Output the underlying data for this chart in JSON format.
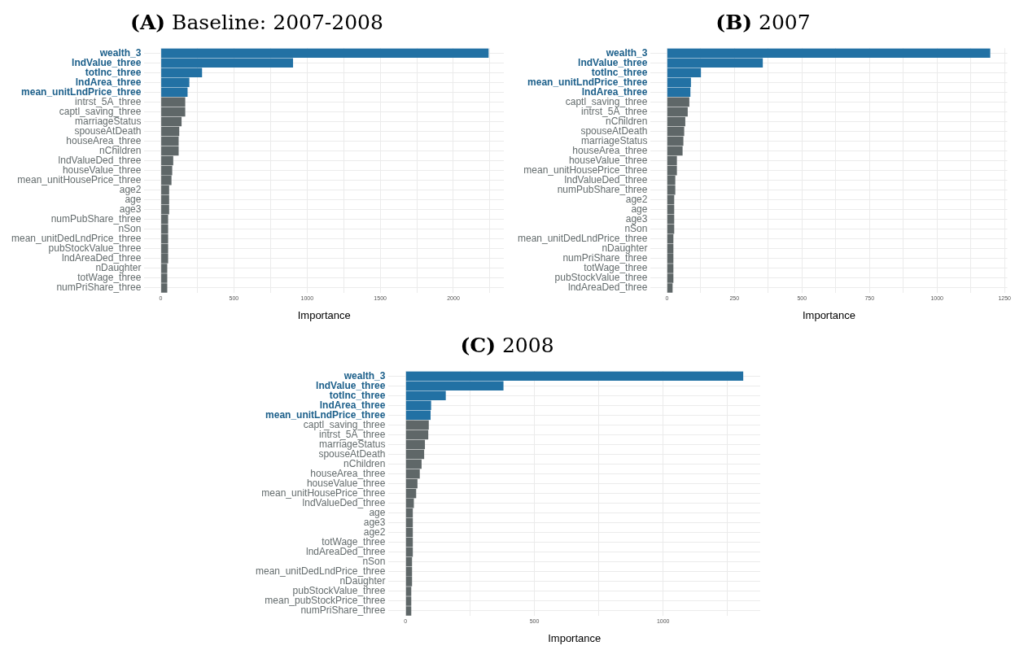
{
  "chart_data": [
    {
      "type": "bar",
      "orientation": "horizontal",
      "title": "(A) Baseline: 2007-2008",
      "xlabel": "Importance",
      "grid": true,
      "categories": [
        "wealth_3",
        "lndValue_three",
        "totInc_three",
        "lndArea_three",
        "mean_unitLndPrice_three",
        "intrst_5A_three",
        "captl_saving_three",
        "marriageStatus",
        "spouseAtDeath",
        "houseArea_three",
        "nChildren",
        "lndValueDed_three",
        "houseValue_three",
        "mean_unitHousePrice_three",
        "age2",
        "age",
        "age3",
        "numPubShare_three",
        "nSon",
        "mean_unitDedLndPrice_three",
        "pubStockValue_three",
        "lndAreaDed_three",
        "nDaughter",
        "totWage_three",
        "numPriShare_three"
      ],
      "values": [
        2241,
        904,
        282,
        195,
        183,
        167,
        167,
        142,
        126,
        122,
        122,
        85,
        78,
        73,
        57,
        57,
        57,
        50,
        50,
        50,
        50,
        50,
        44,
        44,
        44
      ],
      "colors": [
        "#2271a4",
        "#2271a4",
        "#2271a4",
        "#2271a4",
        "#2271a4",
        "#5f6768",
        "#5f6768",
        "#5f6768",
        "#5f6768",
        "#5f6768",
        "#5f6768",
        "#5f6768",
        "#5f6768",
        "#5f6768",
        "#5f6768",
        "#5f6768",
        "#5f6768",
        "#5f6768",
        "#5f6768",
        "#5f6768",
        "#5f6768",
        "#5f6768",
        "#5f6768",
        "#5f6768",
        "#5f6768"
      ],
      "xlim": [
        -112,
        2345
      ],
      "xticks": [
        0,
        {
          "value": 250,
          "label": null
        },
        500,
        {
          "value": 750,
          "label": null
        },
        1000,
        {
          "value": 1250,
          "label": null
        },
        1500,
        {
          "value": 1750,
          "label": null
        },
        2000,
        {
          "value": 2250,
          "label": null
        }
      ]
    },
    {
      "type": "bar",
      "orientation": "horizontal",
      "title": "(B) 2007",
      "xlabel": "Importance",
      "grid": true,
      "categories": [
        "wealth_3",
        "lndValue_three",
        "totInc_three",
        "mean_unitLndPrice_three",
        "lndArea_three",
        "captl_saving_three",
        "intrst_5A_three",
        "nChildren",
        "spouseAtDeath",
        "marriageStatus",
        "houseArea_three",
        "houseValue_three",
        "mean_unitHousePrice_three",
        "lndValueDed_three",
        "numPubShare_three",
        "age2",
        "age",
        "age3",
        "nSon",
        "mean_unitDedLndPrice_three",
        "nDaughter",
        "numPriShare_three",
        "totWage_three",
        "pubStockValue_three",
        "lndAreaDed_three"
      ],
      "values": [
        1197,
        355,
        126,
        89,
        87,
        83,
        77,
        68,
        64,
        61,
        58,
        37,
        37,
        31,
        31,
        27,
        27,
        27,
        27,
        24,
        24,
        24,
        24,
        24,
        21
      ],
      "colors": [
        "#2271a4",
        "#2271a4",
        "#2271a4",
        "#2271a4",
        "#2271a4",
        "#5f6768",
        "#5f6768",
        "#5f6768",
        "#5f6768",
        "#5f6768",
        "#5f6768",
        "#5f6768",
        "#5f6768",
        "#5f6768",
        "#5f6768",
        "#5f6768",
        "#5f6768",
        "#5f6768",
        "#5f6768",
        "#5f6768",
        "#5f6768",
        "#5f6768",
        "#5f6768",
        "#5f6768",
        "#5f6768"
      ],
      "xlim": [
        -60,
        1260
      ],
      "xticks": [
        0,
        {
          "value": 125,
          "label": null
        },
        250,
        {
          "value": 375,
          "label": null
        },
        500,
        {
          "value": 625,
          "label": null
        },
        750,
        {
          "value": 875,
          "label": null
        },
        1000,
        {
          "value": 1125,
          "label": null
        },
        1250
      ]
    },
    {
      "type": "bar",
      "orientation": "horizontal",
      "title": "(C) 2008",
      "xlabel": "Importance",
      "grid": true,
      "categories": [
        "wealth_3",
        "lndValue_three",
        "totInc_three",
        "lndArea_three",
        "mean_unitLndPrice_three",
        "captl_saving_three",
        "intrst_5A_three",
        "marriageStatus",
        "spouseAtDeath",
        "nChildren",
        "houseArea_three",
        "houseValue_three",
        "mean_unitHousePrice_three",
        "lndValueDed_three",
        "age",
        "age3",
        "age2",
        "totWage_three",
        "lndAreaDed_three",
        "nSon",
        "mean_unitDedLndPrice_three",
        "nDaughter",
        "pubStockValue_three",
        "mean_pubStockPrice_three",
        "numPriShare_three"
      ],
      "values": [
        1311,
        380,
        156,
        99,
        97,
        90,
        88,
        75,
        72,
        62,
        55,
        46,
        41,
        32,
        28,
        28,
        28,
        28,
        28,
        25,
        25,
        25,
        22,
        22,
        22
      ],
      "colors": [
        "#2271a4",
        "#2271a4",
        "#2271a4",
        "#2271a4",
        "#2271a4",
        "#5f6768",
        "#5f6768",
        "#5f6768",
        "#5f6768",
        "#5f6768",
        "#5f6768",
        "#5f6768",
        "#5f6768",
        "#5f6768",
        "#5f6768",
        "#5f6768",
        "#5f6768",
        "#5f6768",
        "#5f6768",
        "#5f6768",
        "#5f6768",
        "#5f6768",
        "#5f6768",
        "#5f6768",
        "#5f6768"
      ],
      "xlim": [
        -66,
        1377
      ],
      "xticks": [
        0,
        {
          "value": 250,
          "label": null
        },
        500,
        {
          "value": 750,
          "label": null
        },
        1000,
        {
          "value": 1250,
          "label": null
        }
      ]
    }
  ]
}
